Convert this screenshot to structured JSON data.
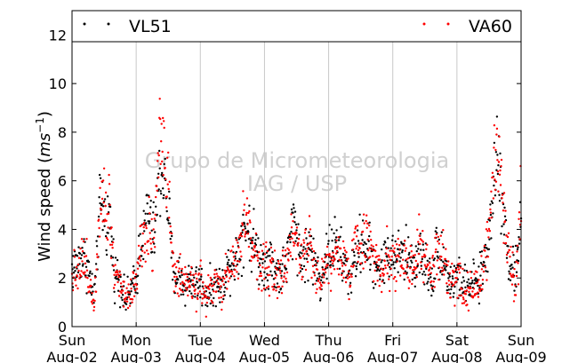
{
  "chart_data": {
    "type": "scatter",
    "ylabel_main": "Wind speed (",
    "ylabel_unit_base": "ms",
    "ylabel_unit_exp": "−1",
    "ylabel_close": ")",
    "ylim": [
      0,
      13
    ],
    "yticks": [
      "0",
      "2",
      "4",
      "6",
      "8",
      "10",
      "12"
    ],
    "ytick_values": [
      0,
      2,
      4,
      6,
      8,
      10,
      12
    ],
    "xlim": [
      0,
      168
    ],
    "xticks": [
      {
        "day": "Sun",
        "date": "Aug-02",
        "hour": 0
      },
      {
        "day": "Mon",
        "date": "Aug-03",
        "hour": 24
      },
      {
        "day": "Tue",
        "date": "Aug-04",
        "hour": 48
      },
      {
        "day": "Wed",
        "date": "Aug-05",
        "hour": 72
      },
      {
        "day": "Thu",
        "date": "Aug-06",
        "hour": 96
      },
      {
        "day": "Fri",
        "date": "Aug-07",
        "hour": 120
      },
      {
        "day": "Sat",
        "date": "Aug-08",
        "hour": 144
      },
      {
        "day": "Sun",
        "date": "Aug-09",
        "hour": 168
      }
    ],
    "grid": "vertical",
    "legend_placement": "top",
    "watermark": [
      "Grupo de Micrometeorologia",
      "IAG / USP"
    ],
    "series": [
      {
        "name": "VL51",
        "color": "#000000",
        "profile": [
          [
            0,
            2.4
          ],
          [
            2,
            2.6
          ],
          [
            4,
            3.0
          ],
          [
            6,
            2.4
          ],
          [
            8,
            1.2
          ],
          [
            9,
            2.0
          ],
          [
            10,
            4.5
          ],
          [
            11,
            5.0
          ],
          [
            12,
            4.8
          ],
          [
            13,
            4.2
          ],
          [
            14,
            4.6
          ],
          [
            15,
            3.2
          ],
          [
            16,
            2.2
          ],
          [
            18,
            2.0
          ],
          [
            20,
            1.0
          ],
          [
            22,
            1.5
          ],
          [
            24,
            1.8
          ],
          [
            26,
            4.0
          ],
          [
            27,
            3.5
          ],
          [
            28,
            5.0
          ],
          [
            29,
            4.5
          ],
          [
            30,
            3.6
          ],
          [
            31,
            4.0
          ],
          [
            32,
            5.5
          ],
          [
            34,
            6.5
          ],
          [
            35,
            5.5
          ],
          [
            36,
            5.0
          ],
          [
            37,
            3.2
          ],
          [
            38,
            2.0
          ],
          [
            40,
            2.2
          ],
          [
            42,
            1.6
          ],
          [
            44,
            2.0
          ],
          [
            46,
            1.8
          ],
          [
            48,
            1.8
          ],
          [
            50,
            1.4
          ],
          [
            52,
            1.5
          ],
          [
            54,
            1.8
          ],
          [
            56,
            1.6
          ],
          [
            58,
            2.4
          ],
          [
            60,
            2.8
          ],
          [
            62,
            3.0
          ],
          [
            63,
            3.6
          ],
          [
            64,
            4.0
          ],
          [
            65,
            4.2
          ],
          [
            66,
            4.0
          ],
          [
            67,
            3.5
          ],
          [
            68,
            3.5
          ],
          [
            70,
            2.8
          ],
          [
            72,
            2.6
          ],
          [
            74,
            2.8
          ],
          [
            76,
            2.3
          ],
          [
            78,
            2.2
          ],
          [
            80,
            2.5
          ],
          [
            82,
            3.8
          ],
          [
            83,
            4.5
          ],
          [
            84,
            4.2
          ],
          [
            85,
            3.0
          ],
          [
            86,
            2.8
          ],
          [
            88,
            3.0
          ],
          [
            89,
            3.5
          ],
          [
            90,
            2.8
          ],
          [
            92,
            2.2
          ],
          [
            93,
            1.8
          ],
          [
            94,
            2.5
          ],
          [
            96,
            3.0
          ],
          [
            98,
            3.5
          ],
          [
            100,
            3.0
          ],
          [
            102,
            2.5
          ],
          [
            104,
            2.0
          ],
          [
            106,
            2.8
          ],
          [
            108,
            3.4
          ],
          [
            110,
            3.5
          ],
          [
            112,
            2.8
          ],
          [
            114,
            2.6
          ],
          [
            116,
            2.2
          ],
          [
            117,
            3.2
          ],
          [
            118,
            3.0
          ],
          [
            120,
            2.8
          ],
          [
            122,
            3.0
          ],
          [
            124,
            3.0
          ],
          [
            126,
            2.8
          ],
          [
            128,
            2.6
          ],
          [
            130,
            3.0
          ],
          [
            132,
            2.5
          ],
          [
            134,
            2.2
          ],
          [
            135,
            2.0
          ],
          [
            136,
            3.0
          ],
          [
            138,
            3.2
          ],
          [
            140,
            2.3
          ],
          [
            141,
            2.0
          ],
          [
            142,
            1.8
          ],
          [
            144,
            2.0
          ],
          [
            146,
            1.8
          ],
          [
            148,
            1.6
          ],
          [
            150,
            1.8
          ],
          [
            152,
            1.6
          ],
          [
            154,
            2.6
          ],
          [
            156,
            3.5
          ],
          [
            157,
            5.0
          ],
          [
            158,
            6.5
          ],
          [
            159,
            7.0
          ],
          [
            160,
            6.5
          ],
          [
            161,
            5.5
          ],
          [
            162,
            4.0
          ],
          [
            163,
            3.0
          ],
          [
            164,
            2.5
          ],
          [
            166,
            2.2
          ],
          [
            167,
            2.8
          ],
          [
            168,
            5.0
          ]
        ]
      },
      {
        "name": "VA60",
        "color": "#ff0000",
        "profile": [
          [
            0,
            2.2
          ],
          [
            2,
            2.4
          ],
          [
            4,
            2.8
          ],
          [
            6,
            2.2
          ],
          [
            8,
            1.0
          ],
          [
            9,
            2.0
          ],
          [
            10,
            4.5
          ],
          [
            11,
            6.0
          ],
          [
            12,
            5.5
          ],
          [
            13,
            4.5
          ],
          [
            14,
            5.0
          ],
          [
            15,
            3.5
          ],
          [
            16,
            2.2
          ],
          [
            18,
            2.0
          ],
          [
            20,
            1.0
          ],
          [
            22,
            1.6
          ],
          [
            24,
            1.9
          ],
          [
            26,
            3.8
          ],
          [
            27,
            3.5
          ],
          [
            28,
            4.2
          ],
          [
            29,
            4.0
          ],
          [
            30,
            3.5
          ],
          [
            31,
            4.0
          ],
          [
            32,
            6.5
          ],
          [
            33,
            8.5
          ],
          [
            34,
            7.5
          ],
          [
            35,
            6.5
          ],
          [
            36,
            5.5
          ],
          [
            37,
            3.5
          ],
          [
            38,
            2.2
          ],
          [
            40,
            2.0
          ],
          [
            42,
            1.5
          ],
          [
            44,
            1.8
          ],
          [
            46,
            1.6
          ],
          [
            48,
            1.7
          ],
          [
            50,
            1.3
          ],
          [
            52,
            1.5
          ],
          [
            54,
            1.7
          ],
          [
            56,
            1.4
          ],
          [
            58,
            2.2
          ],
          [
            60,
            2.6
          ],
          [
            62,
            2.8
          ],
          [
            63,
            3.5
          ],
          [
            64,
            4.2
          ],
          [
            65,
            4.5
          ],
          [
            66,
            4.0
          ],
          [
            67,
            3.6
          ],
          [
            68,
            3.2
          ],
          [
            70,
            2.6
          ],
          [
            72,
            2.5
          ],
          [
            74,
            2.6
          ],
          [
            76,
            2.0
          ],
          [
            78,
            2.0
          ],
          [
            80,
            2.4
          ],
          [
            82,
            3.5
          ],
          [
            83,
            4.2
          ],
          [
            84,
            4.0
          ],
          [
            85,
            3.0
          ],
          [
            86,
            3.0
          ],
          [
            88,
            3.4
          ],
          [
            89,
            3.6
          ],
          [
            90,
            2.8
          ],
          [
            92,
            2.2
          ],
          [
            93,
            1.6
          ],
          [
            94,
            2.3
          ],
          [
            96,
            2.7
          ],
          [
            98,
            3.0
          ],
          [
            100,
            2.8
          ],
          [
            102,
            2.6
          ],
          [
            104,
            2.2
          ],
          [
            106,
            3.0
          ],
          [
            108,
            3.6
          ],
          [
            110,
            3.8
          ],
          [
            112,
            3.0
          ],
          [
            114,
            2.8
          ],
          [
            116,
            2.3
          ],
          [
            117,
            3.0
          ],
          [
            118,
            2.8
          ],
          [
            120,
            2.6
          ],
          [
            122,
            2.8
          ],
          [
            124,
            2.7
          ],
          [
            126,
            2.6
          ],
          [
            128,
            2.5
          ],
          [
            130,
            3.2
          ],
          [
            132,
            2.6
          ],
          [
            134,
            2.3
          ],
          [
            135,
            2.0
          ],
          [
            136,
            3.0
          ],
          [
            138,
            3.0
          ],
          [
            140,
            2.2
          ],
          [
            141,
            1.8
          ],
          [
            142,
            1.6
          ],
          [
            144,
            2.0
          ],
          [
            146,
            1.7
          ],
          [
            148,
            1.4
          ],
          [
            150,
            1.6
          ],
          [
            152,
            1.4
          ],
          [
            154,
            2.5
          ],
          [
            156,
            3.6
          ],
          [
            157,
            5.2
          ],
          [
            158,
            6.8
          ],
          [
            159,
            7.5
          ],
          [
            160,
            7.0
          ],
          [
            161,
            5.8
          ],
          [
            162,
            4.2
          ],
          [
            163,
            3.2
          ],
          [
            164,
            2.5
          ],
          [
            166,
            2.2
          ],
          [
            167,
            2.8
          ],
          [
            168,
            5.5
          ]
        ]
      }
    ]
  }
}
